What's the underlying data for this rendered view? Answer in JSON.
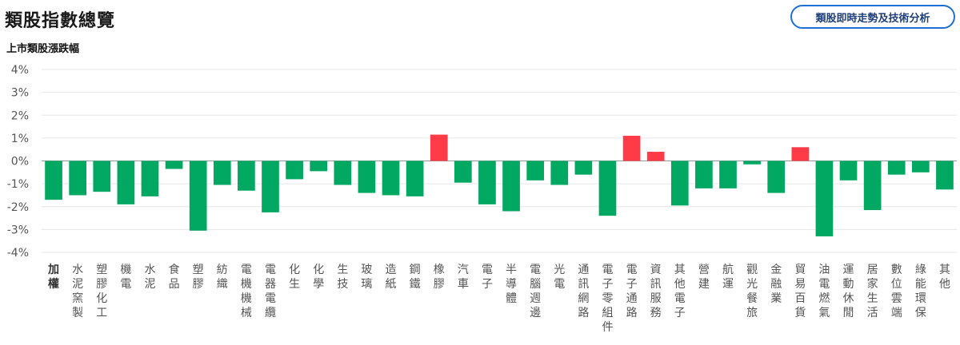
{
  "header": {
    "title": "類股指數總覽",
    "analysis_button_label": "類股即時走勢及技術分析"
  },
  "colors": {
    "up": "#ff3b47",
    "down": "#00a862",
    "grid": "#e6e6e6",
    "zero_line": "#999999"
  },
  "chart_data": {
    "type": "bar",
    "title": "上市類股漲跌幅",
    "xlabel": "",
    "ylabel": "",
    "ylim": [
      -4,
      4
    ],
    "yticks": [
      "4%",
      "3%",
      "2%",
      "1%",
      "0%",
      "-1%",
      "-2%",
      "-3%",
      "-4%"
    ],
    "grid": true,
    "categories": [
      "加權",
      "水泥窯製",
      "塑膠化工",
      "機電",
      "水泥",
      "食品",
      "塑膠",
      "紡織",
      "電機機械",
      "電器電纜",
      "化生",
      "化學",
      "生技",
      "玻璃",
      "造紙",
      "鋼鐵",
      "橡膠",
      "汽車",
      "電子",
      "半導體",
      "電腦週邊",
      "光電",
      "通訊網路",
      "電子零組件",
      "電子通路",
      "資訊服務",
      "其他電子",
      "營建",
      "航運",
      "觀光餐旅",
      "金融業",
      "貿易百貨",
      "油電燃氣",
      "運動休閒",
      "居家生活",
      "數位雲端",
      "綠能環保",
      "其他"
    ],
    "values": [
      -1.7,
      -1.5,
      -1.35,
      -1.9,
      -1.55,
      -0.35,
      -3.05,
      -1.05,
      -1.3,
      -2.25,
      -0.8,
      -0.45,
      -1.05,
      -1.4,
      -1.5,
      -1.55,
      1.15,
      -0.95,
      -1.9,
      -2.2,
      -0.85,
      -1.05,
      -0.6,
      -2.4,
      1.1,
      0.4,
      -1.95,
      -1.2,
      -1.2,
      -0.15,
      -1.4,
      0.6,
      -3.3,
      -0.85,
      -2.15,
      -0.6,
      -0.5,
      -1.25
    ]
  }
}
